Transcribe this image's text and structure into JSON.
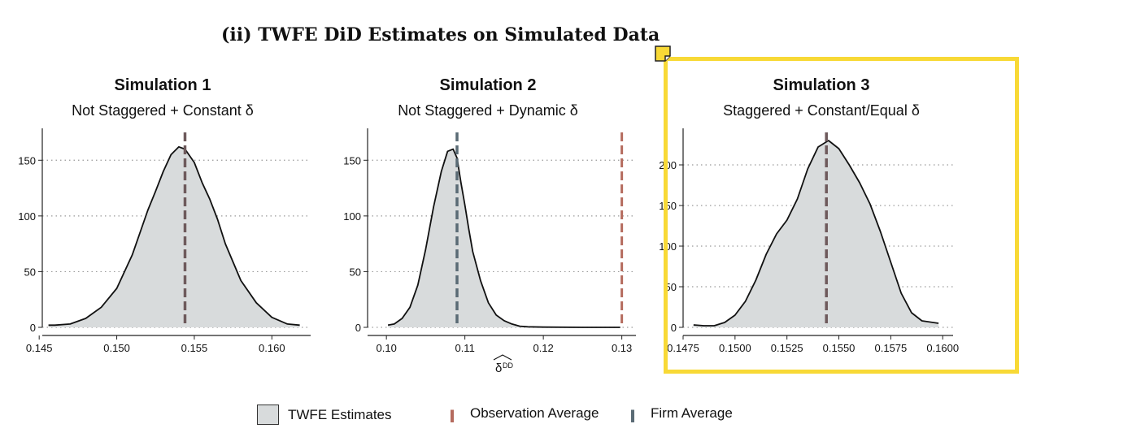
{
  "figure_title": "(ii) TWFE DiD Estimates on Simulated Data",
  "colors": {
    "density_fill": "#d8dbdc",
    "density_line": "#111111",
    "observation_average": "#b56b5e",
    "firm_average": "#5a6b75",
    "highlight_border": "#f8d936"
  },
  "legend": {
    "estimates_label": "TWFE Estimates",
    "observation_label": "Observation Average",
    "firm_label": "Firm Average"
  },
  "chart_data": [
    {
      "type": "area",
      "title": "Simulation 1",
      "subtitle": "Not Staggered + Constant δ",
      "xlabel": "",
      "xlim": [
        0.1452,
        0.1625
      ],
      "ylim": [
        0,
        175
      ],
      "xticks": [
        0.145,
        0.15,
        0.155,
        0.16
      ],
      "xtick_labels": [
        "0.145",
        "0.150",
        "0.155",
        "0.160"
      ],
      "yticks": [
        0,
        50,
        100,
        150
      ],
      "ytick_labels": [
        "0",
        "50",
        "100",
        "150"
      ],
      "grid": "horizontal dotted",
      "density": {
        "x": [
          0.1456,
          0.146,
          0.147,
          0.148,
          0.149,
          0.15,
          0.151,
          0.152,
          0.1525,
          0.153,
          0.1535,
          0.154,
          0.1544,
          0.155,
          0.1555,
          0.156,
          0.1565,
          0.157,
          0.158,
          0.159,
          0.16,
          0.161,
          0.1618
        ],
        "y": [
          2,
          2,
          3,
          8,
          18,
          35,
          65,
          105,
          122,
          140,
          155,
          162,
          160,
          148,
          130,
          115,
          97,
          75,
          42,
          22,
          9,
          3,
          2
        ]
      },
      "observation_average": 0.1544,
      "firm_average": 0.1544
    },
    {
      "type": "area",
      "title": "Simulation 2",
      "subtitle": "Not Staggered + Dynamic δ",
      "xlabel": "δ̂ DD",
      "xlim": [
        0.0976,
        0.1318
      ],
      "ylim": [
        0,
        175
      ],
      "xticks": [
        0.1,
        0.11,
        0.12,
        0.13
      ],
      "xtick_labels": [
        "0.10",
        "0.11",
        "0.12",
        "0.13"
      ],
      "yticks": [
        0,
        50,
        100,
        150
      ],
      "ytick_labels": [
        "0",
        "50",
        "100",
        "150"
      ],
      "grid": "horizontal dotted",
      "density": {
        "x": [
          0.1002,
          0.101,
          0.102,
          0.103,
          0.104,
          0.105,
          0.106,
          0.107,
          0.1078,
          0.1085,
          0.109,
          0.1095,
          0.11,
          0.1105,
          0.111,
          0.112,
          0.113,
          0.114,
          0.115,
          0.116,
          0.117,
          0.118,
          0.12,
          0.125,
          0.1298
        ],
        "y": [
          2,
          3,
          8,
          18,
          38,
          70,
          108,
          140,
          158,
          160,
          152,
          130,
          110,
          88,
          68,
          42,
          22,
          11,
          6,
          3,
          1,
          0.5,
          0.2,
          0,
          0
        ]
      },
      "observation_average": 0.13,
      "firm_average": 0.109
    },
    {
      "type": "area",
      "title": "Simulation 3",
      "subtitle": "Staggered + Constant/Equal δ",
      "xlabel": "",
      "xlim": [
        0.1475,
        0.1605
      ],
      "ylim": [
        0,
        240
      ],
      "xticks": [
        0.1475,
        0.15,
        0.1525,
        0.155,
        0.1575,
        0.16
      ],
      "xtick_labels": [
        "0.1475",
        "0.1500",
        "0.1525",
        "0.1550",
        "0.1575",
        "0.1600"
      ],
      "yticks": [
        0,
        50,
        100,
        150,
        200
      ],
      "ytick_labels": [
        "0",
        "50",
        "100",
        "150",
        "200"
      ],
      "grid": "horizontal dotted",
      "density": {
        "x": [
          0.148,
          0.1485,
          0.149,
          0.1495,
          0.15,
          0.1505,
          0.151,
          0.1515,
          0.152,
          0.1525,
          0.153,
          0.1535,
          0.154,
          0.1545,
          0.155,
          0.1555,
          0.156,
          0.1565,
          0.157,
          0.1575,
          0.158,
          0.1585,
          0.159,
          0.1598
        ],
        "y": [
          3,
          2,
          2,
          6,
          15,
          32,
          58,
          90,
          115,
          132,
          158,
          195,
          222,
          230,
          220,
          200,
          178,
          152,
          118,
          80,
          42,
          18,
          8,
          5
        ]
      },
      "observation_average": 0.1544,
      "firm_average": 0.1544
    }
  ]
}
